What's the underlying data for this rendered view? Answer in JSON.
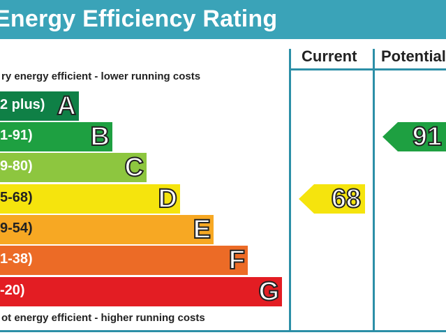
{
  "title": "Energy Efficiency Rating",
  "columns": {
    "current": "Current",
    "potential": "Potential"
  },
  "captions": {
    "top": "ry energy efficient - lower running costs",
    "bottom": "ot energy efficient - higher running costs"
  },
  "colors": {
    "header": "#3aa3b8",
    "frame": "#2c8fa7",
    "A": "#0f8046",
    "B": "#1ea041",
    "C": "#8dc63f",
    "D": "#f5e40d",
    "E": "#f7a823",
    "F": "#ec6b26",
    "G": "#e31d23"
  },
  "chart_data": {
    "type": "bar",
    "categories": [
      "A",
      "B",
      "C",
      "D",
      "E",
      "F",
      "G"
    ],
    "ranges": [
      "2 plus)",
      "1-91)",
      "9-80)",
      "5-68)",
      "9-54)",
      "1-38)",
      "-20)"
    ],
    "current": {
      "label": "Current",
      "value": 68,
      "band": "D"
    },
    "potential": {
      "label": "Potential",
      "value": 91,
      "band": "B"
    }
  }
}
